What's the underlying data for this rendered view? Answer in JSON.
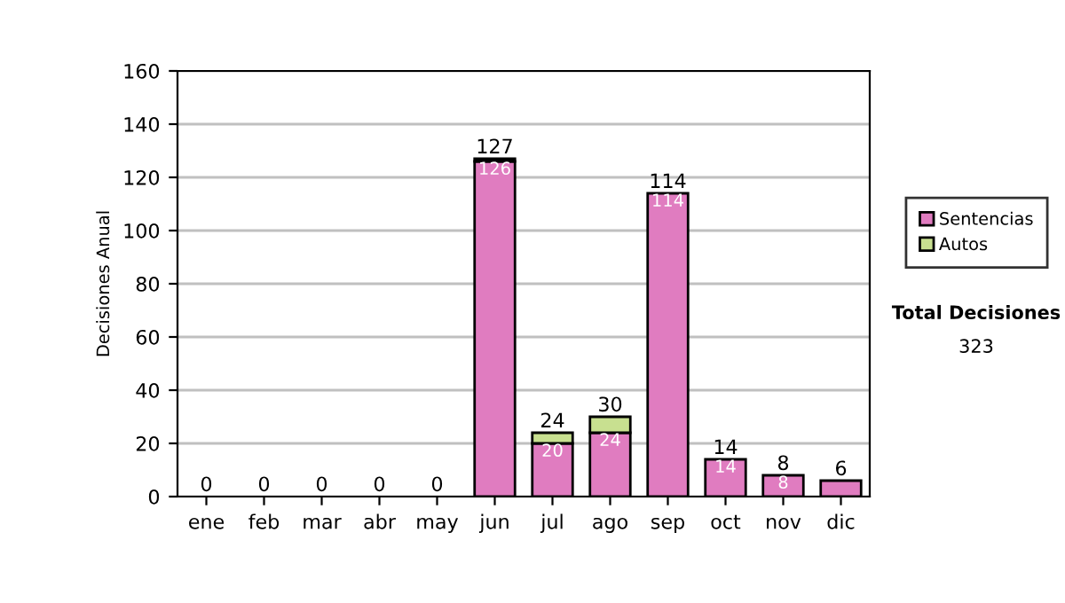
{
  "chart_data": {
    "type": "bar",
    "stacked": true,
    "ylabel": "Decisiones Anual",
    "categories": [
      "ene",
      "feb",
      "mar",
      "abr",
      "may",
      "jun",
      "jul",
      "ago",
      "sep",
      "oct",
      "nov",
      "dic"
    ],
    "series": [
      {
        "name": "Sentencias",
        "color": "#e07cc0",
        "values": [
          0,
          0,
          0,
          0,
          0,
          126,
          20,
          24,
          114,
          14,
          8,
          6
        ],
        "value_labels": [
          null,
          null,
          null,
          null,
          null,
          "126",
          "20",
          "24",
          "114",
          "14",
          "8",
          null
        ]
      },
      {
        "name": "Autos",
        "color": "#c8e090",
        "values": [
          0,
          0,
          0,
          0,
          0,
          1,
          4,
          6,
          0,
          0,
          0,
          0
        ]
      }
    ],
    "totals": [
      "0",
      "0",
      "0",
      "0",
      "0",
      "127",
      "24",
      "30",
      "114",
      "14",
      "8",
      "6"
    ],
    "ylim": [
      0,
      160
    ],
    "yticks": [
      0,
      20,
      40,
      60,
      80,
      100,
      120,
      140,
      160
    ],
    "grid": "y",
    "legend": "right",
    "annotations": [
      "Total Decisiones",
      "323"
    ]
  }
}
